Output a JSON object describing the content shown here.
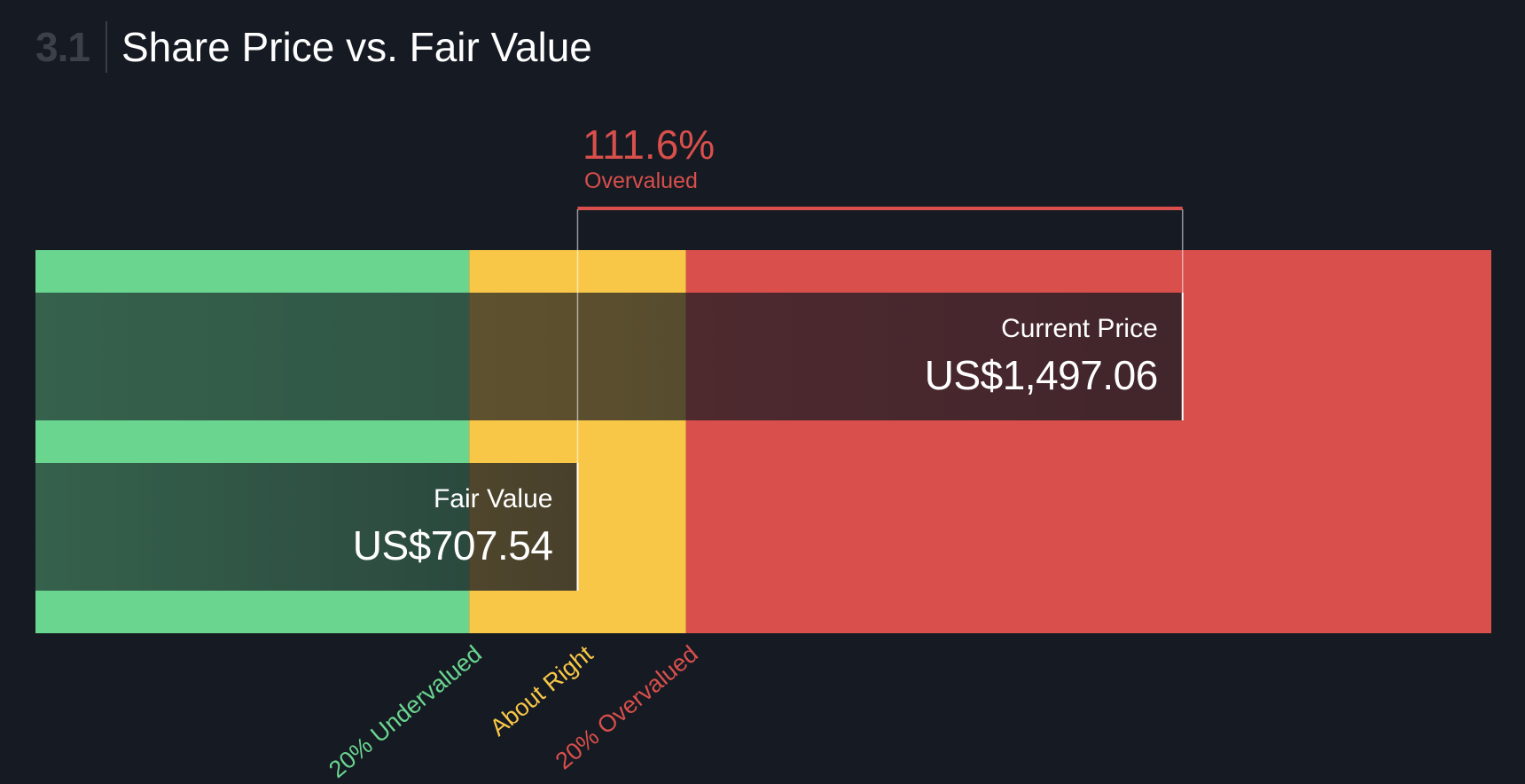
{
  "header": {
    "section_number": "3.1",
    "title": "Share Price vs. Fair Value"
  },
  "valuation": {
    "percent": "111.6%",
    "status": "Overvalued"
  },
  "zones": [
    {
      "label": "20% Undervalued",
      "color": "#69d58f"
    },
    {
      "label": "About Right",
      "color": "#f8c748"
    },
    {
      "label": "20% Overvalued",
      "color": "#d84f4b"
    }
  ],
  "chart_data": {
    "type": "bar",
    "categories": [
      "Current Price",
      "Fair Value"
    ],
    "values": [
      1497.06,
      707.54
    ],
    "value_labels": [
      "US$1,497.06",
      "US$707.54"
    ],
    "currency": "US$",
    "zone_thresholds": {
      "undervalued_max": 566.03,
      "about_right_max": 849.05
    },
    "xlim": [
      0,
      1900
    ],
    "colors": {
      "undervalued": "#69d58f",
      "about_right": "#f8c748",
      "overvalued": "#d84f4b",
      "background": "#161a23"
    }
  }
}
